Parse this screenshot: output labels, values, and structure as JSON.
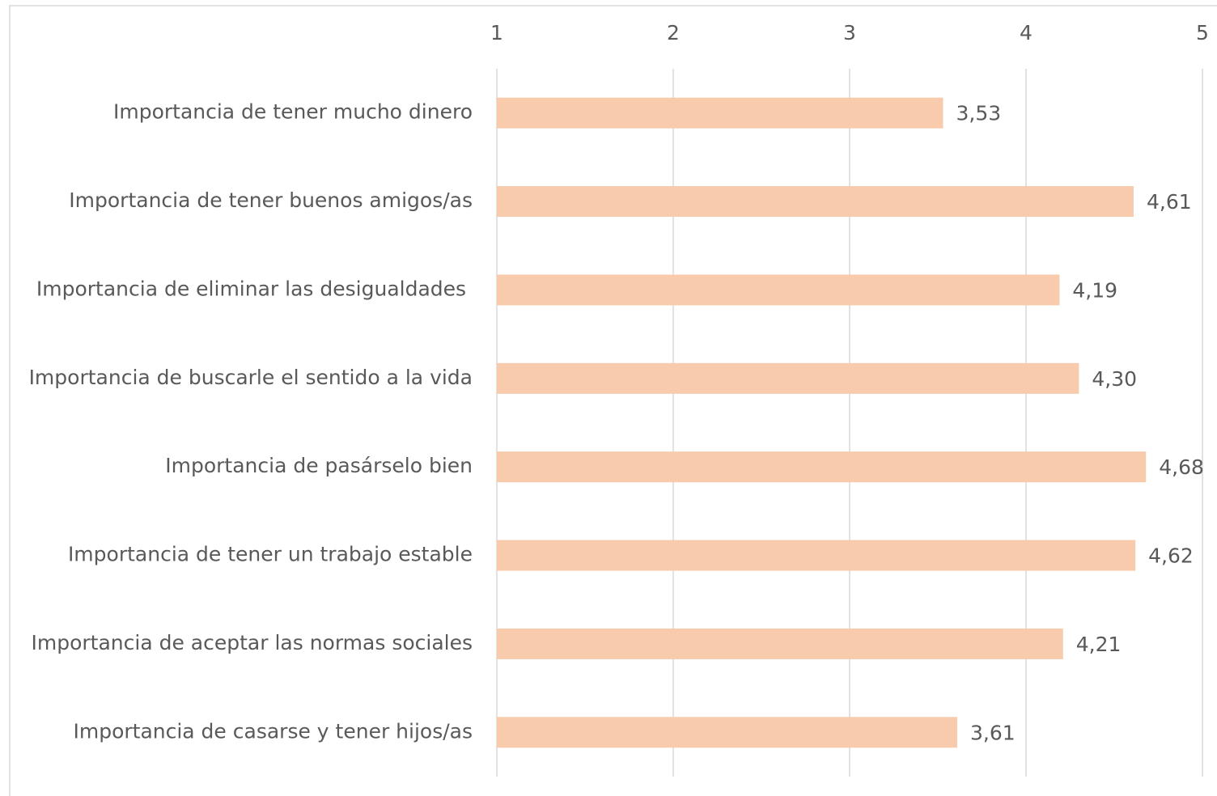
{
  "chart_data": {
    "type": "bar",
    "orientation": "horizontal",
    "categories": [
      "Importancia de tener mucho dinero",
      "Importancia de tener buenos amigos/as",
      "Importancia de eliminar las desigualdades ",
      "Importancia de buscarle el sentido a la vida",
      "Importancia de pasárselo bien",
      "Importancia de tener un trabajo estable",
      "Importancia de aceptar las normas sociales",
      "Importancia de casarse y tener hijos/as"
    ],
    "values": [
      3.53,
      4.61,
      4.19,
      4.3,
      4.68,
      4.62,
      4.21,
      3.61
    ],
    "value_labels": [
      "3,53",
      "4,61",
      "4,19",
      "4,30",
      "4,68",
      "4,62",
      "4,21",
      "3,61"
    ],
    "color": "#f8cbad",
    "xlim": [
      1,
      5
    ],
    "xticks": [
      1,
      2,
      3,
      4,
      5
    ],
    "grid": true
  }
}
